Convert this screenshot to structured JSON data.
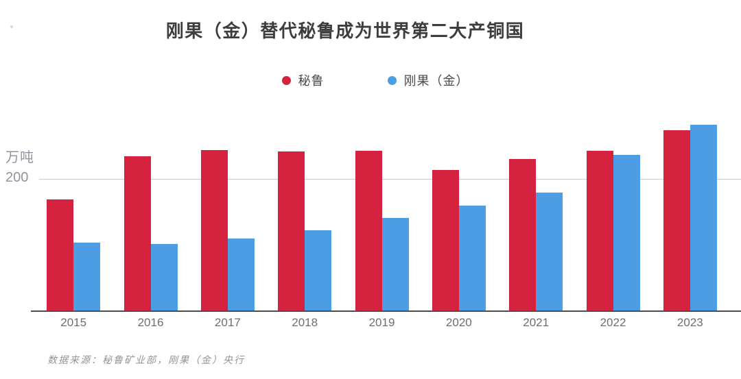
{
  "chart_data": {
    "type": "bar",
    "title": "刚果（金）替代秘鲁成为世界第二大产铜国",
    "ylabel": "万吨",
    "ytick_label": "200",
    "gridline_value": 200,
    "ylim": [
      0,
      300
    ],
    "grid": "single-horizontal-gridline-at-200",
    "legend_position": "top-center",
    "categories": [
      "2015",
      "2016",
      "2017",
      "2018",
      "2019",
      "2020",
      "2021",
      "2022",
      "2023"
    ],
    "series": [
      {
        "name": "秘鲁",
        "key": "peru",
        "color": "#d5233f",
        "values": [
          170,
          235,
          245,
          243,
          244,
          215,
          231,
          244,
          275
        ]
      },
      {
        "name": "刚果（金）",
        "key": "congo",
        "color": "#4c9de4",
        "values": [
          104,
          102,
          110,
          123,
          142,
          160,
          180,
          237,
          283
        ]
      }
    ],
    "source_note": "数据来源：秘鲁矿业部，刚果（金）央行"
  },
  "colors": {
    "title_text": "#3d3d3d",
    "legend_text": "#4a4a4a",
    "axis_label_text": "#8f949e",
    "x_tick_text": "#6e6e6e",
    "gridline": "#cbcbcb",
    "axis_line": "#4d4d4d",
    "source_text": "#949494",
    "background": "#ffffff"
  }
}
